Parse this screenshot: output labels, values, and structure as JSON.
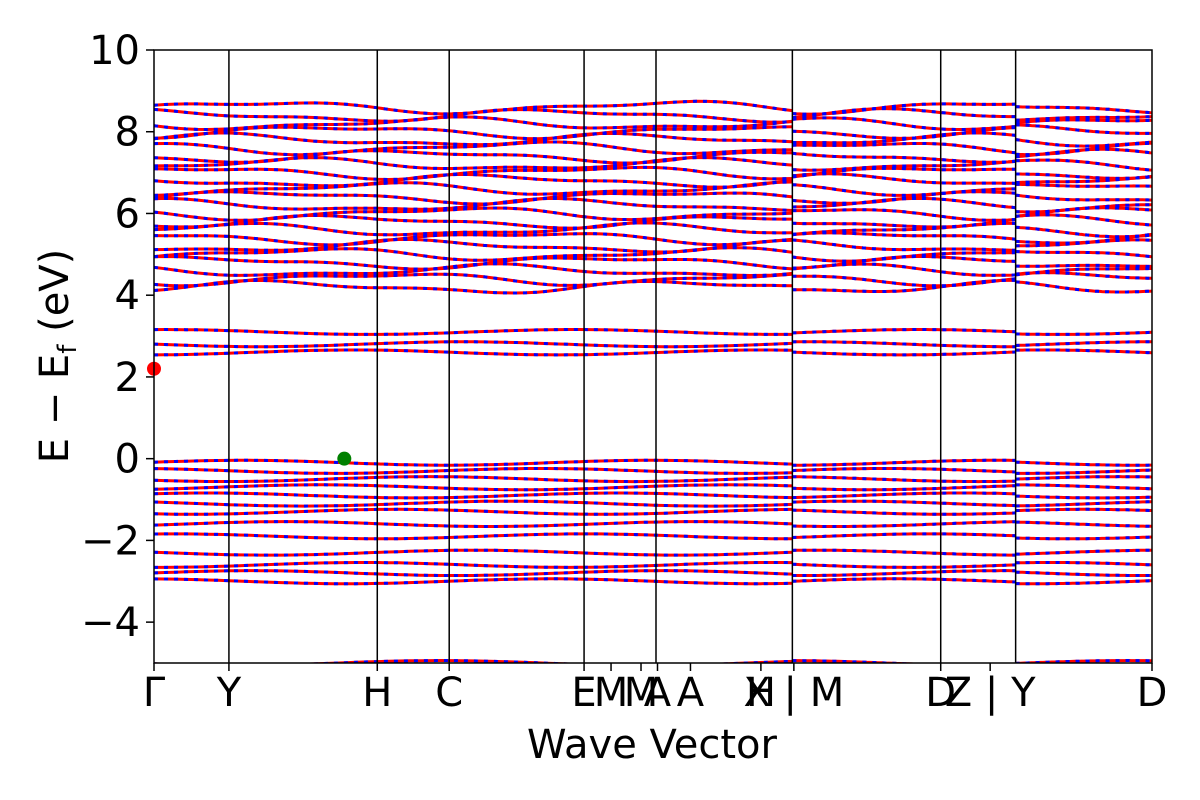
{
  "chart_data": {
    "type": "line",
    "xlabel": "Wave Vector",
    "ylabel": "E − E_f (eV)",
    "ylabel_main": "E − E",
    "ylabel_sub": "f",
    "ylabel_unit": " (eV)",
    "ylim": [
      -5,
      10
    ],
    "yticks": [
      {
        "value": 10,
        "label": "10"
      },
      {
        "value": 8,
        "label": "8"
      },
      {
        "value": 6,
        "label": "6"
      },
      {
        "value": 4,
        "label": "4"
      },
      {
        "value": 2,
        "label": "2"
      },
      {
        "value": 0,
        "label": "0"
      },
      {
        "value": -2,
        "label": "−2"
      },
      {
        "value": -4,
        "label": "−4"
      }
    ],
    "xticks": [
      {
        "pos": 0.0,
        "label": "Γ"
      },
      {
        "pos": 0.5,
        "label": "Y"
      },
      {
        "pos": 1.49,
        "label": "H"
      },
      {
        "pos": 1.97,
        "label": "C"
      },
      {
        "pos": 2.87,
        "label": "E"
      },
      {
        "pos": 3.05,
        "label": "M"
      },
      {
        "pos": 3.25,
        "label": "M"
      },
      {
        "pos": 3.36,
        "label": "A"
      },
      {
        "pos": 3.58,
        "label": "A"
      },
      {
        "pos": 4.05,
        "label": "H"
      },
      {
        "pos": 4.27,
        "label": "X | M"
      },
      {
        "pos": 5.25,
        "label": "D"
      },
      {
        "pos": 5.58,
        "label": "Z | Y"
      },
      {
        "pos": 6.66,
        "label": "D"
      }
    ],
    "xmax": 6.66,
    "vlines": [
      0.5,
      1.49,
      1.97,
      2.87,
      3.35,
      4.26,
      5.25,
      5.75
    ],
    "breaks": [
      4.26,
      5.75
    ],
    "series": [
      {
        "color": "#ff0000",
        "bands": [
          8.6,
          8.4,
          8.2,
          8.0,
          7.8,
          7.6,
          7.4,
          7.2,
          7.0,
          6.8,
          6.6,
          6.4,
          6.2,
          6.0,
          5.8,
          5.6,
          5.4,
          5.2,
          5.0,
          4.8,
          4.6,
          4.4,
          4.2,
          3.1,
          2.8,
          2.6,
          -0.1,
          -0.3,
          -0.5,
          -0.7,
          -0.9,
          -1.1,
          -1.3,
          -1.6,
          -1.9,
          -2.3,
          -2.6,
          -2.8,
          -3.0,
          -5.0
        ]
      },
      {
        "color": "#0000ff",
        "bands": [
          8.6,
          8.4,
          8.2,
          8.0,
          7.8,
          7.6,
          7.4,
          7.2,
          7.0,
          6.8,
          6.6,
          6.4,
          6.2,
          6.0,
          5.8,
          5.6,
          5.4,
          5.2,
          5.0,
          4.8,
          4.6,
          4.4,
          4.2,
          3.1,
          2.8,
          2.6,
          -0.1,
          -0.3,
          -0.5,
          -0.7,
          -0.9,
          -1.1,
          -1.3,
          -1.6,
          -1.9,
          -2.3,
          -2.6,
          -2.8,
          -3.0,
          -5.0
        ]
      }
    ],
    "markers": [
      {
        "x": 0.0,
        "y": 2.2,
        "color": "#ff0000"
      },
      {
        "x": 1.27,
        "y": 0.0,
        "color": "#008000"
      }
    ],
    "grid": false
  }
}
